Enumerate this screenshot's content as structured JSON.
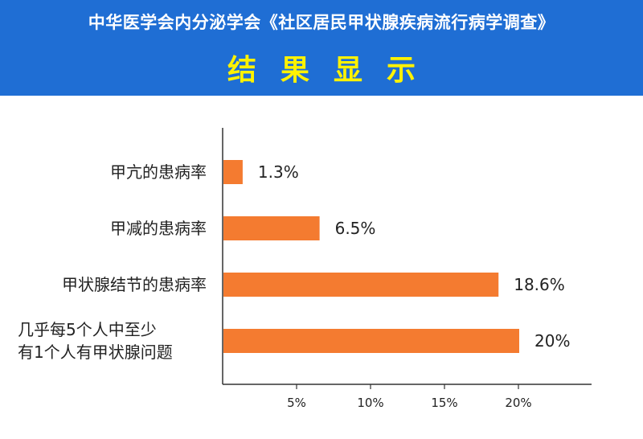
{
  "header": {
    "title": "中华医学会内分泌学会《社区居民甲状腺疾病流行病学调查》",
    "subtitle": "结果显示"
  },
  "colors": {
    "banner": "#1f6ed4",
    "subtitle": "#fff200",
    "bar": "#f47b30",
    "axis": "#333333"
  },
  "chart_data": {
    "type": "bar",
    "orientation": "horizontal",
    "categories": [
      [
        "甲亢的患病率"
      ],
      [
        "甲减的患病率"
      ],
      [
        "甲状腺结节的患病率"
      ],
      [
        "几乎每5个人中至少",
        "有1个人有甲状腺问题"
      ]
    ],
    "values": [
      1.3,
      6.5,
      18.6,
      20
    ],
    "value_labels": [
      "1.3%",
      "6.5%",
      "18.6%",
      "20%"
    ],
    "xticks": [
      5,
      10,
      15,
      20
    ],
    "xtick_labels": [
      "5%",
      "10%",
      "15%",
      "20%"
    ],
    "xlim": [
      0,
      25
    ],
    "grid": false,
    "legend": false
  }
}
